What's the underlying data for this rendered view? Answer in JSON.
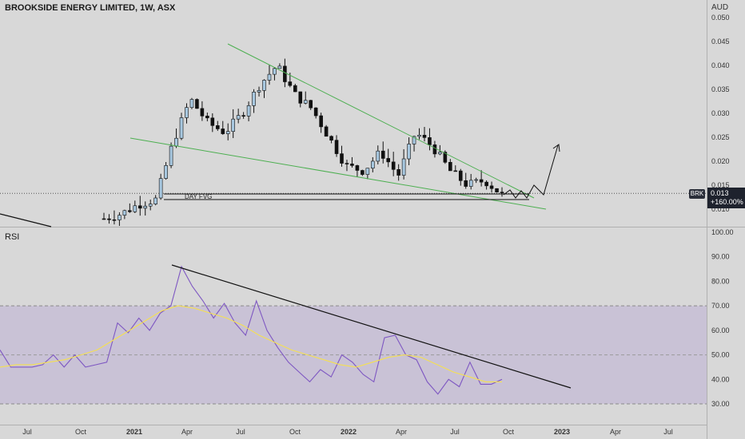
{
  "header": {
    "title": "BROOKSIDE ENERGY LIMITED, 1W, ASX",
    "currency": "AUD"
  },
  "price_panel": {
    "ticker_badge": "BRK",
    "last_price": "0.013",
    "change_pct": "+160.00%",
    "fvg_label": "DAY FVG",
    "ticks": [
      "0.050",
      "0.045",
      "0.040",
      "0.035",
      "0.030",
      "0.025",
      "0.020",
      "0.015",
      "0.010"
    ]
  },
  "rsi_panel": {
    "label": "RSI",
    "ticks": [
      "100.00",
      "90.00",
      "80.00",
      "70.00",
      "60.00",
      "50.00",
      "40.00",
      "30.00"
    ]
  },
  "time_axis": {
    "labels": [
      {
        "text": "Jul",
        "bold": false
      },
      {
        "text": "Oct",
        "bold": false
      },
      {
        "text": "2021",
        "bold": true
      },
      {
        "text": "Apr",
        "bold": false
      },
      {
        "text": "Jul",
        "bold": false
      },
      {
        "text": "Oct",
        "bold": false
      },
      {
        "text": "2022",
        "bold": true
      },
      {
        "text": "Apr",
        "bold": false
      },
      {
        "text": "Jul",
        "bold": false
      },
      {
        "text": "Oct",
        "bold": false
      },
      {
        "text": "2023",
        "bold": true
      },
      {
        "text": "Apr",
        "bold": false
      },
      {
        "text": "Jul",
        "bold": false
      }
    ]
  },
  "colors": {
    "up": "#a8c8e0",
    "down": "#111111",
    "trendline_green": "#4caf50",
    "rsi_line": "#7e57c2",
    "rsi_ma": "#f5e050",
    "rsi_band": "#c9c2d6"
  },
  "chart_data": [
    {
      "type": "candlestick",
      "title": "BROOKSIDE ENERGY LIMITED, 1W, ASX",
      "ylabel": "AUD",
      "ylim": [
        0.0075,
        0.051
      ],
      "approximate_close_path": [
        0.008,
        0.009,
        0.011,
        0.012,
        0.024,
        0.033,
        0.028,
        0.026,
        0.03,
        0.036,
        0.04,
        0.034,
        0.031,
        0.025,
        0.019,
        0.018,
        0.022,
        0.017,
        0.026,
        0.023,
        0.018,
        0.015,
        0.016,
        0.013
      ],
      "last_value": 0.013,
      "annotations": [
        "DAY FVG",
        "BRK 0.013 +160.00%"
      ]
    },
    {
      "type": "line",
      "title": "RSI",
      "ylim": [
        25,
        100
      ],
      "bands": [
        30,
        70
      ],
      "series": [
        {
          "name": "RSI",
          "values": [
            52,
            45,
            45,
            45,
            46,
            50,
            45,
            50,
            45,
            46,
            47,
            63,
            59,
            65,
            60,
            67,
            70,
            86,
            78,
            72,
            65,
            71,
            63,
            58,
            72,
            60,
            53,
            47,
            43,
            39,
            44,
            41,
            50,
            47,
            42,
            39,
            57,
            58,
            50,
            48,
            39,
            34,
            40,
            37,
            47,
            38,
            38,
            40
          ]
        },
        {
          "values": [
            45,
            46,
            46,
            47,
            48,
            50,
            52,
            56,
            60,
            64,
            68,
            70,
            69,
            67,
            65,
            62,
            58,
            55,
            52,
            50,
            48,
            46,
            45,
            47,
            49,
            50,
            49,
            46,
            43,
            41,
            39,
            39
          ]
        }
      ]
    }
  ]
}
